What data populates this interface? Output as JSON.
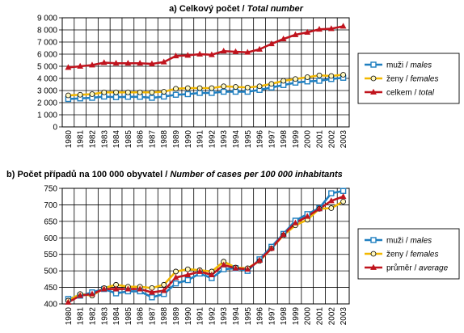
{
  "colors": {
    "males": "#1f7fc0",
    "females": "#f2b800",
    "total": "#c0141e",
    "grid": "#000000",
    "marker_fill_f": "#fff8c0"
  },
  "chart_data": [
    {
      "id": "a",
      "type": "line",
      "title_main": "a) Celkový počet / ",
      "title_italic": "Total number",
      "x": [
        "1980",
        "1981",
        "1982",
        "1983",
        "1984",
        "1985",
        "1986",
        "1987",
        "1988",
        "1989",
        "1990",
        "1991",
        "1992",
        "1993",
        "1994",
        "1995",
        "1996",
        "1997",
        "1998",
        "1999",
        "2000",
        "2001",
        "2002",
        "2003"
      ],
      "ylim": [
        0,
        9000
      ],
      "yticks": [
        "0",
        "1 000",
        "2 000",
        "3 000",
        "4 000",
        "5 000",
        "6 000",
        "7 000",
        "8 000",
        "9 000"
      ],
      "ytick_values": [
        0,
        1000,
        2000,
        3000,
        4000,
        5000,
        6000,
        7000,
        8000,
        9000
      ],
      "grid": true,
      "legend_position": "right",
      "series": [
        {
          "key": "males",
          "name_main": "muži / ",
          "name_italic": "males",
          "marker": "square",
          "values": [
            2300,
            2350,
            2400,
            2500,
            2450,
            2480,
            2480,
            2400,
            2500,
            2650,
            2700,
            2800,
            2800,
            2900,
            2900,
            2900,
            3050,
            3250,
            3450,
            3650,
            3750,
            3800,
            3950,
            4050
          ]
        },
        {
          "key": "females",
          "name_main": "ženy / ",
          "name_italic": "females",
          "marker": "circle",
          "values": [
            2600,
            2650,
            2700,
            2850,
            2850,
            2850,
            2850,
            2850,
            2900,
            3150,
            3200,
            3200,
            3200,
            3350,
            3300,
            3250,
            3350,
            3550,
            3800,
            3950,
            4100,
            4250,
            4200,
            4300
          ]
        },
        {
          "key": "total",
          "name_main": "celkem / ",
          "name_italic": "total",
          "marker": "triangle",
          "values": [
            4900,
            5000,
            5100,
            5300,
            5250,
            5250,
            5250,
            5200,
            5350,
            5850,
            5900,
            6000,
            5950,
            6250,
            6200,
            6150,
            6400,
            6850,
            7250,
            7600,
            7800,
            8050,
            8100,
            8300
          ]
        }
      ]
    },
    {
      "id": "b",
      "type": "line",
      "title_main": "b) Počet případů na 100 000 obyvatel / ",
      "title_italic": "Number of cases per 100 000 inhabitants",
      "x": [
        "1980",
        "1981",
        "1982",
        "1983",
        "1984",
        "1985",
        "1986",
        "1987",
        "1988",
        "1989",
        "1990",
        "1991",
        "1992",
        "1993",
        "1994",
        "1995",
        "1996",
        "1997",
        "1998",
        "1999",
        "2000",
        "2001",
        "2002",
        "2003"
      ],
      "ylim": [
        400,
        750
      ],
      "yticks": [
        "400",
        "450",
        "500",
        "550",
        "600",
        "650",
        "700",
        "750"
      ],
      "ytick_values": [
        400,
        450,
        500,
        550,
        600,
        650,
        700,
        750
      ],
      "grid": true,
      "legend_position": "right",
      "series": [
        {
          "key": "males",
          "name_main": "muži / ",
          "name_italic": "males",
          "marker": "square",
          "values": [
            415,
            425,
            435,
            445,
            432,
            438,
            438,
            420,
            430,
            462,
            472,
            492,
            478,
            505,
            508,
            500,
            535,
            573,
            612,
            652,
            672,
            690,
            735,
            742
          ]
        },
        {
          "key": "females",
          "name_main": "ženy / ",
          "name_italic": "females",
          "marker": "circle",
          "values": [
            410,
            430,
            425,
            448,
            458,
            452,
            452,
            448,
            458,
            498,
            505,
            502,
            498,
            528,
            510,
            508,
            530,
            568,
            608,
            638,
            655,
            688,
            690,
            710
          ]
        },
        {
          "key": "total",
          "name_main": "průměr / ",
          "name_italic": "average",
          "marker": "triangle",
          "values": [
            405,
            425,
            430,
            445,
            445,
            445,
            445,
            435,
            440,
            480,
            488,
            498,
            488,
            518,
            508,
            505,
            532,
            568,
            610,
            645,
            665,
            688,
            712,
            725
          ]
        }
      ]
    }
  ]
}
